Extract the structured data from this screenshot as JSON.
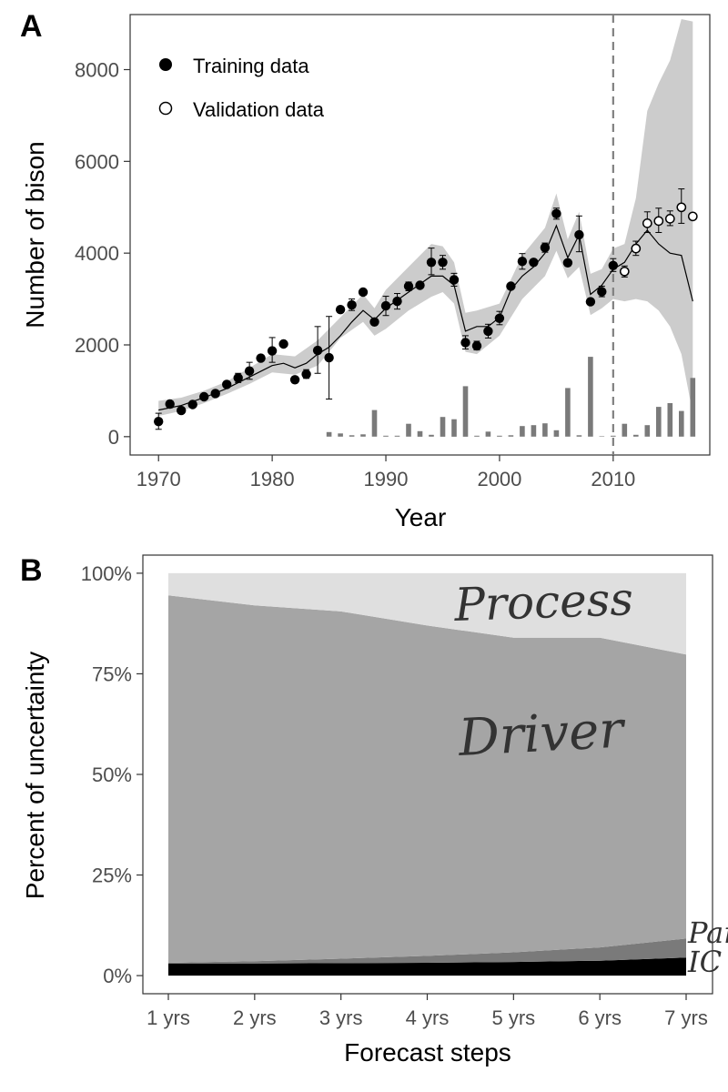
{
  "chart_data": [
    {
      "panel_label": "A",
      "type": "line",
      "xlabel": "Year",
      "ylabel": "Number of bison",
      "xlim": [
        1967.5,
        2018.5
      ],
      "ylim": [
        -400,
        9200
      ],
      "xticks": [
        1970,
        1980,
        1990,
        2000,
        2010
      ],
      "yticks": [
        0,
        2000,
        4000,
        6000,
        8000
      ],
      "vline_x": 2010,
      "grid": false,
      "legend_position": "top-left",
      "legend": [
        "Training data",
        "Validation data"
      ],
      "colors": {
        "band": "#cccccc",
        "bars": "#7a7a7a",
        "points": "#000000",
        "line": "#000000",
        "vline": "#808080"
      },
      "training": {
        "name": "Training data",
        "x": [
          1970,
          1971,
          1972,
          1973,
          1974,
          1975,
          1976,
          1977,
          1978,
          1979,
          1980,
          1981,
          1982,
          1983,
          1984,
          1985,
          1986,
          1987,
          1988,
          1989,
          1990,
          1991,
          1992,
          1993,
          1994,
          1995,
          1996,
          1997,
          1998,
          1999,
          2000,
          2001,
          2002,
          2003,
          2004,
          2005,
          2006,
          2007,
          2008,
          2009,
          2010
        ],
        "y": [
          330,
          710,
          570,
          700,
          870,
          940,
          1140,
          1280,
          1430,
          1710,
          1870,
          2020,
          1240,
          1360,
          1880,
          1720,
          2770,
          2870,
          3150,
          2500,
          2850,
          2950,
          3280,
          3300,
          3800,
          3800,
          3420,
          2050,
          1980,
          2300,
          2580,
          3280,
          3820,
          3800,
          4120,
          4860,
          3790,
          4400,
          2940,
          3160,
          3730
        ],
        "err_low": [
          160,
          630,
          570,
          650,
          870,
          940,
          1140,
          1180,
          1250,
          1710,
          1620,
          2020,
          1240,
          1270,
          1380,
          820,
          2770,
          2750,
          3150,
          2500,
          2640,
          2780,
          3180,
          3300,
          3530,
          3650,
          3280,
          1910,
          1890,
          2150,
          2440,
          3280,
          3650,
          3800,
          4020,
          4740,
          3790,
          4030,
          2940,
          3050,
          3600
        ],
        "err_high": [
          510,
          780,
          570,
          760,
          870,
          940,
          1140,
          1380,
          1620,
          1710,
          2160,
          2020,
          1240,
          1460,
          2400,
          2620,
          2770,
          3000,
          3150,
          2500,
          3060,
          3120,
          3370,
          3300,
          4110,
          3950,
          3560,
          2200,
          2080,
          2450,
          2730,
          3280,
          3990,
          3800,
          4220,
          4980,
          3790,
          4810,
          2940,
          3280,
          3880
        ]
      },
      "validation": {
        "name": "Validation data",
        "x": [
          2011,
          2012,
          2013,
          2014,
          2015,
          2016,
          2017
        ],
        "y": [
          3600,
          4100,
          4650,
          4700,
          4750,
          5000,
          4800
        ],
        "err_low": [
          3480,
          3950,
          4450,
          4450,
          4600,
          4650,
          4800
        ],
        "err_high": [
          3720,
          4260,
          4900,
          4980,
          4920,
          5400,
          4800
        ]
      },
      "forecast_line": {
        "x": [
          1970,
          1972,
          1974,
          1976,
          1978,
          1980,
          1981,
          1982,
          1983,
          1984,
          1985,
          1986,
          1987,
          1988,
          1989,
          1990,
          1992,
          1994,
          1995,
          1996,
          1997,
          1998,
          1999,
          2000,
          2001,
          2002,
          2003,
          2004,
          2005,
          2006,
          2007,
          2008,
          2009,
          2010,
          2011,
          2012,
          2013,
          2014,
          2015,
          2016,
          2017
        ],
        "y": [
          580,
          680,
          850,
          1050,
          1300,
          1550,
          1600,
          1500,
          1600,
          1800,
          1950,
          2200,
          2500,
          2750,
          2550,
          2800,
          3150,
          3500,
          3500,
          3300,
          2300,
          2400,
          2400,
          2600,
          3200,
          3500,
          3700,
          4000,
          4600,
          3900,
          4400,
          3100,
          3300,
          3650,
          3800,
          4200,
          4500,
          4200,
          4000,
          3950,
          2950
        ]
      },
      "band": {
        "x": [
          1970,
          1972,
          1974,
          1976,
          1978,
          1980,
          1982,
          1984,
          1986,
          1988,
          1989,
          1990,
          1992,
          1994,
          1995,
          1996,
          1997,
          1998,
          2000,
          2002,
          2004,
          2005,
          2006,
          2007,
          2008,
          2009,
          2010,
          2011,
          2012,
          2013,
          2014,
          2015,
          2016,
          2017
        ],
        "low": [
          450,
          560,
          730,
          930,
          1150,
          1400,
          1350,
          1550,
          2150,
          2500,
          2200,
          2350,
          2750,
          3050,
          3150,
          2900,
          1850,
          1800,
          2200,
          3000,
          3500,
          4050,
          3450,
          3700,
          2650,
          2800,
          3000,
          2950,
          3000,
          2950,
          2750,
          2400,
          1800,
          500
        ],
        "high": [
          780,
          850,
          1000,
          1200,
          1500,
          1800,
          1750,
          2100,
          2600,
          3100,
          2800,
          3200,
          3700,
          4200,
          4150,
          3800,
          2700,
          2750,
          2900,
          3950,
          4550,
          5300,
          4300,
          4900,
          3550,
          3650,
          4100,
          4200,
          5200,
          7100,
          7700,
          8200,
          9100,
          9050
        ]
      },
      "bars": {
        "x": [
          1985,
          1986,
          1987,
          1988,
          1989,
          1990,
          1991,
          1992,
          1993,
          1994,
          1995,
          1996,
          1997,
          1998,
          1999,
          2000,
          2001,
          2002,
          2003,
          2004,
          2005,
          2006,
          2007,
          2008,
          2009,
          2010,
          2011,
          2012,
          2013,
          2014,
          2015,
          2016,
          2017
        ],
        "y": [
          100,
          70,
          30,
          50,
          580,
          20,
          20,
          280,
          120,
          40,
          430,
          380,
          1100,
          20,
          110,
          20,
          30,
          230,
          250,
          290,
          140,
          1060,
          30,
          1740,
          10,
          20,
          280,
          40,
          250,
          650,
          730,
          560,
          1280
        ]
      }
    },
    {
      "panel_label": "B",
      "type": "area",
      "xlabel": "Forecast steps",
      "ylabel": "Percent of uncertainty",
      "categories": [
        "1 yrs",
        "2 yrs",
        "3 yrs",
        "4 yrs",
        "5 yrs",
        "6 yrs",
        "7 yrs"
      ],
      "yticks": [
        "0%",
        "25%",
        "50%",
        "75%",
        "100%"
      ],
      "ylim": [
        -0.045,
        1.045
      ],
      "stacked": true,
      "grid": false,
      "series": [
        {
          "name": "IC",
          "color": "#000000",
          "values": [
            0.03,
            0.03,
            0.031,
            0.032,
            0.034,
            0.037,
            0.045
          ]
        },
        {
          "name": "Param",
          "color": "#7a7a7a",
          "values": [
            0.002,
            0.006,
            0.011,
            0.017,
            0.024,
            0.033,
            0.047
          ]
        },
        {
          "name": "Driver",
          "color": "#a5a5a5",
          "values": [
            0.913,
            0.884,
            0.863,
            0.821,
            0.782,
            0.77,
            0.706
          ]
        },
        {
          "name": "Process",
          "color": "#dfdfdf",
          "values": [
            0.055,
            0.08,
            0.095,
            0.13,
            0.16,
            0.16,
            0.202
          ]
        }
      ],
      "annotations": {
        "process": "Process",
        "driver": "Driver",
        "param": "Par",
        "ic": "IC"
      }
    }
  ]
}
